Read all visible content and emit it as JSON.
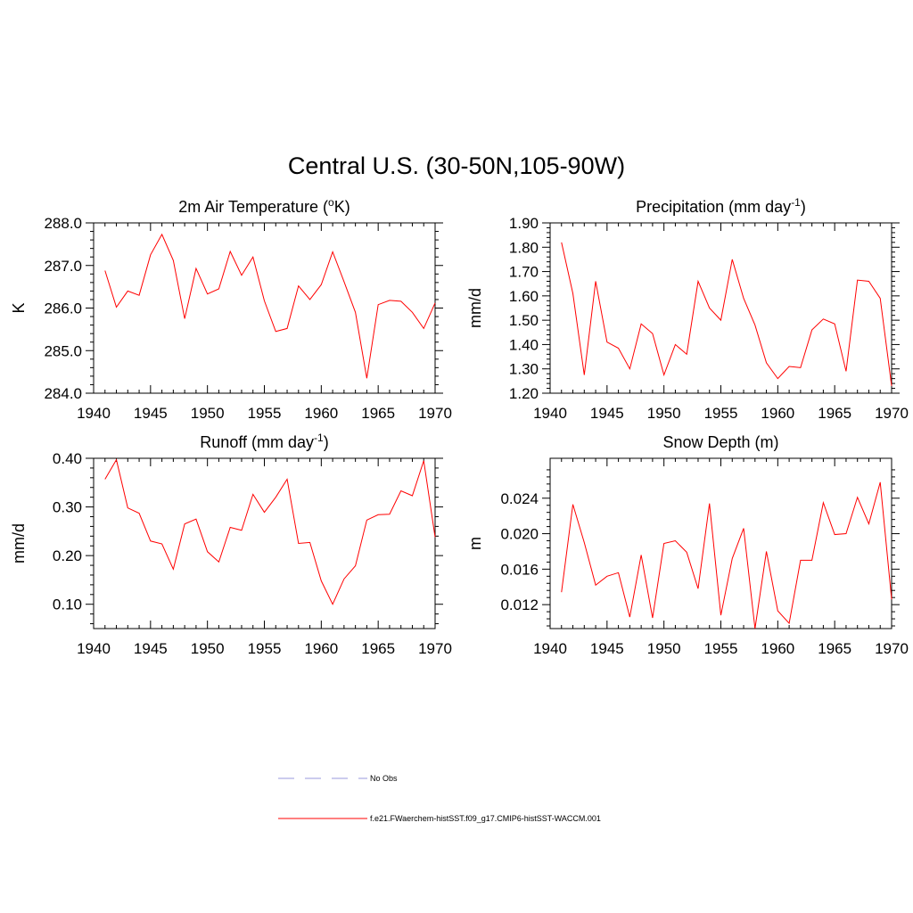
{
  "figure": {
    "title": "Central U.S. (30-50N,105-90W)"
  },
  "legend": {
    "items": [
      {
        "label": "No Obs",
        "color": "#9999dd",
        "dash": "dashed"
      },
      {
        "label": "f.e21.FWaerchem-histSST.f09_g17.CMIP6-histSST-WACCM.001",
        "color": "#ff0000",
        "dash": "solid"
      }
    ]
  },
  "chart_data": [
    {
      "type": "line",
      "title": "2m Air Temperature (",
      "title_sup": "o",
      "title_after": "K)",
      "title_tail": "",
      "ylabel": "K",
      "xlim": [
        1940,
        1970
      ],
      "ylim": [
        284.0,
        288.0
      ],
      "xticks": [
        1940,
        1945,
        1950,
        1955,
        1960,
        1965,
        1970
      ],
      "yticks": [
        284.0,
        285.0,
        286.0,
        287.0,
        288.0
      ],
      "ytick_labels": [
        "284.0",
        "285.0",
        "286.0",
        "287.0",
        "288.0"
      ],
      "x": [
        1941,
        1942,
        1943,
        1944,
        1945,
        1946,
        1947,
        1948,
        1949,
        1950,
        1951,
        1952,
        1953,
        1954,
        1955,
        1956,
        1957,
        1958,
        1959,
        1960,
        1961,
        1962,
        1963,
        1964,
        1965,
        1966,
        1967,
        1968,
        1969,
        1970
      ],
      "series": [
        {
          "values": [
            286.88,
            286.02,
            286.4,
            286.3,
            287.25,
            287.73,
            287.12,
            285.75,
            286.93,
            286.33,
            286.45,
            287.33,
            286.77,
            287.2,
            286.17,
            285.45,
            285.52,
            286.52,
            286.2,
            286.55,
            287.32,
            286.62,
            285.9,
            284.35,
            286.08,
            286.18,
            286.16,
            285.9,
            285.52,
            286.12
          ],
          "color": "#ff0000"
        }
      ]
    },
    {
      "type": "line",
      "title": "Precipitation (mm day",
      "title_sup": "-1",
      "title_after": ")",
      "title_tail": "",
      "ylabel": "mm/d",
      "xlim": [
        1940,
        1970
      ],
      "ylim": [
        1.2,
        1.9
      ],
      "xticks": [
        1940,
        1945,
        1950,
        1955,
        1960,
        1965,
        1970
      ],
      "yticks": [
        1.2,
        1.3,
        1.4,
        1.5,
        1.6,
        1.7,
        1.8,
        1.9
      ],
      "ytick_labels": [
        "1.20",
        "1.30",
        "1.40",
        "1.50",
        "1.60",
        "1.70",
        "1.80",
        "1.90"
      ],
      "x": [
        1941,
        1942,
        1943,
        1944,
        1945,
        1946,
        1947,
        1948,
        1949,
        1950,
        1951,
        1952,
        1953,
        1954,
        1955,
        1956,
        1957,
        1958,
        1959,
        1960,
        1961,
        1962,
        1963,
        1964,
        1965,
        1966,
        1967,
        1968,
        1969,
        1970
      ],
      "series": [
        {
          "values": [
            1.82,
            1.61,
            1.275,
            1.66,
            1.41,
            1.385,
            1.3,
            1.485,
            1.445,
            1.275,
            1.4,
            1.36,
            1.66,
            1.55,
            1.5,
            1.75,
            1.59,
            1.48,
            1.325,
            1.26,
            1.31,
            1.305,
            1.46,
            1.505,
            1.485,
            1.29,
            1.665,
            1.66,
            1.59,
            1.23
          ],
          "color": "#ff0000"
        }
      ]
    },
    {
      "type": "line",
      "title": "Runoff (mm day",
      "title_sup": "-1",
      "title_after": ")",
      "title_tail": "",
      "ylabel": "mm/d",
      "xlim": [
        1940,
        1970
      ],
      "ylim": [
        0.05,
        0.4
      ],
      "xticks": [
        1940,
        1945,
        1950,
        1955,
        1960,
        1965,
        1970
      ],
      "yticks": [
        0.1,
        0.2,
        0.3,
        0.4
      ],
      "ytick_labels": [
        "0.10",
        "0.20",
        "0.30",
        "0.40"
      ],
      "x": [
        1941,
        1942,
        1943,
        1944,
        1945,
        1946,
        1947,
        1948,
        1949,
        1950,
        1951,
        1952,
        1953,
        1954,
        1955,
        1956,
        1957,
        1958,
        1959,
        1960,
        1961,
        1962,
        1963,
        1964,
        1965,
        1966,
        1967,
        1968,
        1969,
        1970
      ],
      "series": [
        {
          "values": [
            0.357,
            0.397,
            0.298,
            0.287,
            0.23,
            0.224,
            0.172,
            0.265,
            0.275,
            0.208,
            0.187,
            0.258,
            0.252,
            0.326,
            0.289,
            0.32,
            0.357,
            0.225,
            0.227,
            0.148,
            0.1,
            0.152,
            0.179,
            0.273,
            0.284,
            0.285,
            0.333,
            0.323,
            0.395,
            0.238
          ],
          "color": "#ff0000"
        }
      ]
    },
    {
      "type": "line",
      "title": "Snow Depth (m)",
      "title_sup": "",
      "title_after": "",
      "title_tail": "",
      "ylabel": "m",
      "xlim": [
        1940,
        1970
      ],
      "ylim": [
        0.0093,
        0.0285
      ],
      "xticks": [
        1940,
        1945,
        1950,
        1955,
        1960,
        1965,
        1970
      ],
      "yticks": [
        0.012,
        0.016,
        0.02,
        0.024
      ],
      "ytick_labels": [
        "0.012",
        "0.016",
        "0.020",
        "0.024"
      ],
      "x": [
        1941,
        1942,
        1943,
        1944,
        1945,
        1946,
        1947,
        1948,
        1949,
        1950,
        1951,
        1952,
        1953,
        1954,
        1955,
        1956,
        1957,
        1958,
        1959,
        1960,
        1961,
        1962,
        1963,
        1964,
        1965,
        1966,
        1967,
        1968,
        1969,
        1970
      ],
      "series": [
        {
          "values": [
            0.0134,
            0.0233,
            0.019,
            0.0142,
            0.0152,
            0.0156,
            0.0106,
            0.0176,
            0.0105,
            0.0189,
            0.0192,
            0.0179,
            0.0138,
            0.0234,
            0.0108,
            0.0172,
            0.0206,
            0.0093,
            0.018,
            0.0113,
            0.0099,
            0.017,
            0.017,
            0.0235,
            0.0199,
            0.02,
            0.0241,
            0.0211,
            0.0258,
            0.0126
          ],
          "color": "#ff0000"
        }
      ]
    }
  ]
}
